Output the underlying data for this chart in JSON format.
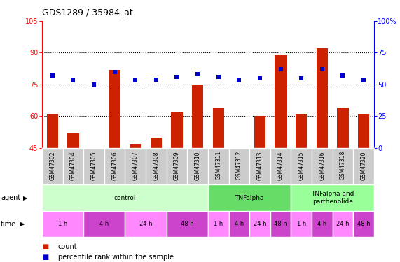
{
  "title": "GDS1289 / 35984_at",
  "samples": [
    "GSM47302",
    "GSM47304",
    "GSM47305",
    "GSM47306",
    "GSM47307",
    "GSM47308",
    "GSM47309",
    "GSM47310",
    "GSM47311",
    "GSM47312",
    "GSM47313",
    "GSM47314",
    "GSM47315",
    "GSM47316",
    "GSM47318",
    "GSM47320"
  ],
  "counts": [
    61,
    52,
    45,
    82,
    47,
    50,
    62,
    75,
    64,
    45,
    60,
    89,
    61,
    92,
    64,
    61
  ],
  "pct_values": [
    57,
    53,
    50,
    60,
    53,
    54,
    56,
    58,
    56,
    53,
    55,
    62,
    55,
    62,
    57,
    53
  ],
  "ylim_left": [
    45,
    105
  ],
  "ylim_right": [
    0,
    100
  ],
  "yticks_left": [
    45,
    60,
    75,
    90,
    105
  ],
  "yticks_right": [
    0,
    25,
    50,
    75,
    100
  ],
  "ytick_labels_right": [
    "0",
    "25",
    "50",
    "75",
    "100%"
  ],
  "bar_color": "#cc2200",
  "dot_color": "#0000cc",
  "agent_groups": [
    {
      "label": "control",
      "start": 0,
      "end": 8,
      "color": "#ccffcc"
    },
    {
      "label": "TNFalpha",
      "start": 8,
      "end": 12,
      "color": "#66dd66"
    },
    {
      "label": "TNFalpha and\nparthenolide",
      "start": 12,
      "end": 16,
      "color": "#99ff99"
    }
  ],
  "time_groups": [
    {
      "label": "1 h",
      "start": 0,
      "end": 2,
      "color": "#ff88ff"
    },
    {
      "label": "4 h",
      "start": 2,
      "end": 4,
      "color": "#cc44cc"
    },
    {
      "label": "24 h",
      "start": 4,
      "end": 6,
      "color": "#ff88ff"
    },
    {
      "label": "48 h",
      "start": 6,
      "end": 8,
      "color": "#cc44cc"
    },
    {
      "label": "1 h",
      "start": 8,
      "end": 9,
      "color": "#ff88ff"
    },
    {
      "label": "4 h",
      "start": 9,
      "end": 10,
      "color": "#cc44cc"
    },
    {
      "label": "24 h",
      "start": 10,
      "end": 11,
      "color": "#ff88ff"
    },
    {
      "label": "48 h",
      "start": 11,
      "end": 12,
      "color": "#cc44cc"
    },
    {
      "label": "1 h",
      "start": 12,
      "end": 13,
      "color": "#ff88ff"
    },
    {
      "label": "4 h",
      "start": 13,
      "end": 14,
      "color": "#cc44cc"
    },
    {
      "label": "24 h",
      "start": 14,
      "end": 15,
      "color": "#ff88ff"
    },
    {
      "label": "48 h",
      "start": 15,
      "end": 16,
      "color": "#cc44cc"
    }
  ],
  "legend_count_label": "count",
  "legend_pct_label": "percentile rank within the sample",
  "bg_color": "#ffffff",
  "sample_bg_color": "#cccccc",
  "label_col_color": "#e8e8e8"
}
